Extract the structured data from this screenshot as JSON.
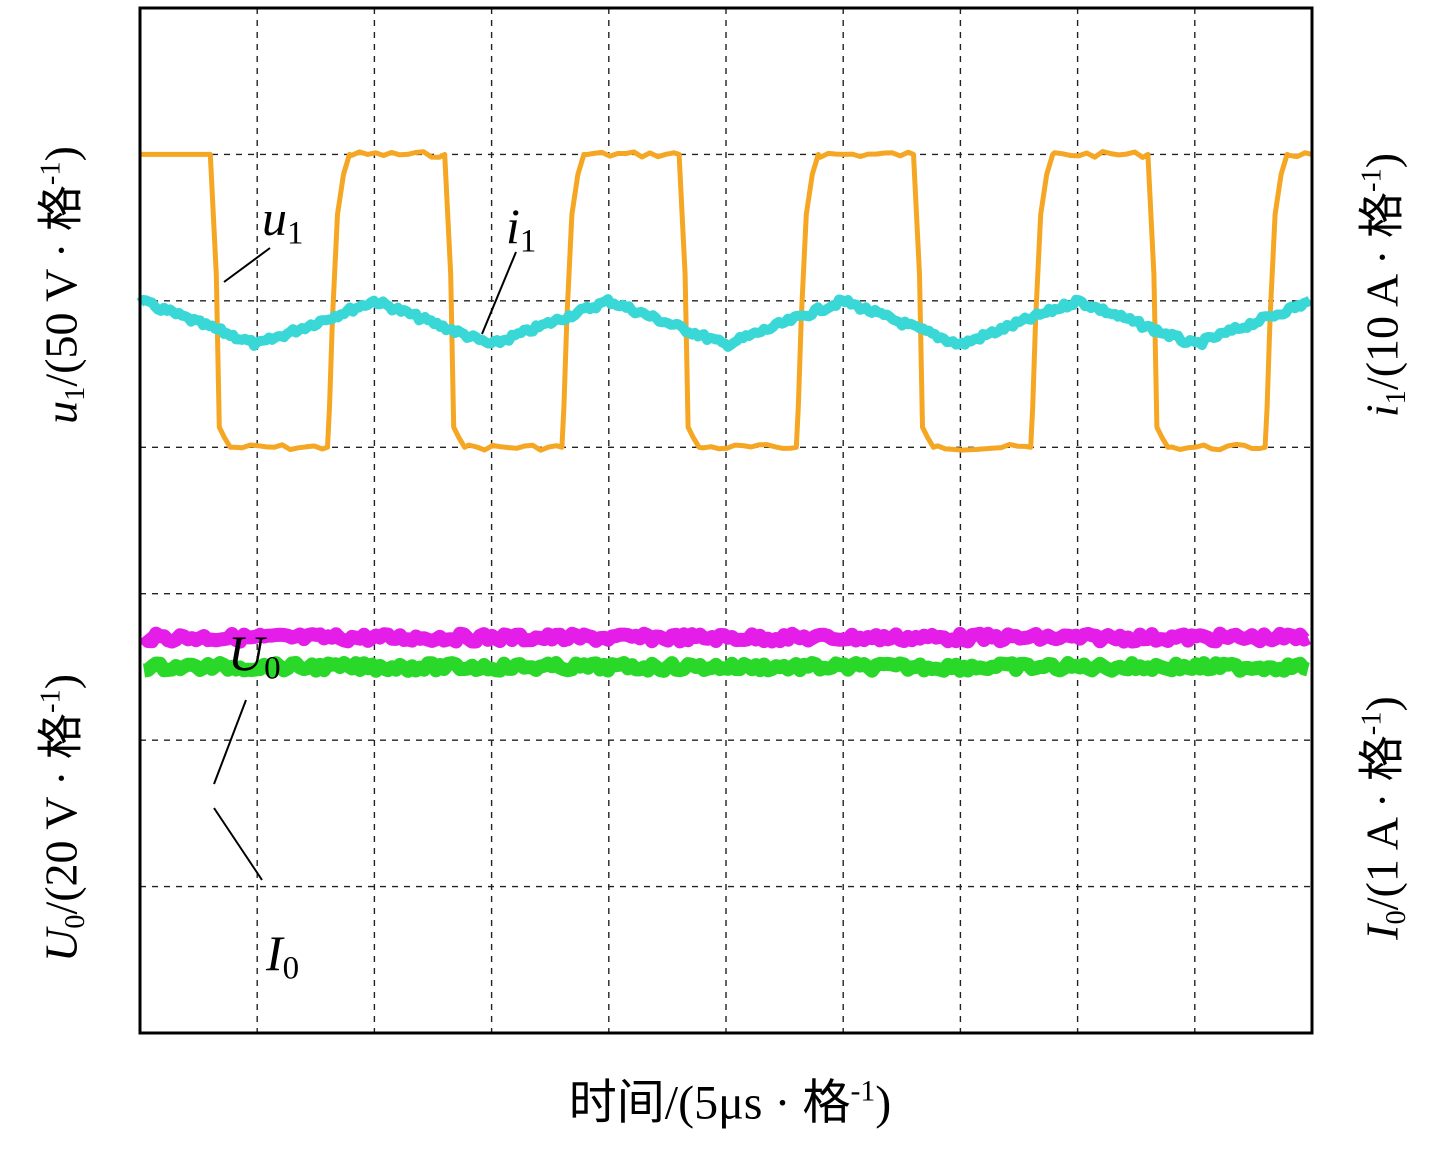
{
  "chart_data": {
    "type": "line",
    "title": "",
    "xlabel": "时间/(5μs · 格-1)",
    "x_axis": {
      "unit_label": "时间/(5μs · 格",
      "exp": "-1",
      "close": ")",
      "divisions": 10
    },
    "y_axes": {
      "left_upper": {
        "var": "u",
        "sub": "1",
        "rest": "/(50 V · 格",
        "exp": "-1",
        "close": ")"
      },
      "left_lower": {
        "var": "U",
        "sub": "0",
        "rest": "/(20 V · 格",
        "exp": "-1",
        "close": ")"
      },
      "right_upper": {
        "var": "i",
        "sub": "1",
        "rest": "/(10 A · 格",
        "exp": "-1",
        "close": ")"
      },
      "right_lower": {
        "var": "I",
        "sub": "0",
        "rest": "/(1 A · 格",
        "exp": "-1",
        "close": ")"
      }
    },
    "grid": true,
    "divisions": {
      "x": 10,
      "y": 7
    },
    "series": [
      {
        "name": "u1",
        "label_var": "u",
        "label_sub": "1",
        "color": "#f5a623",
        "shape": "square",
        "high_div": 1.0,
        "low_div": 3.0,
        "cycles_start_div": 0.6,
        "period_div": 2.0
      },
      {
        "name": "i1",
        "label_var": "i",
        "label_sub": "1",
        "color": "#3ad7d7",
        "shape": "triangle",
        "mid_div": 2.15,
        "amplitude_div": 0.15,
        "period_div": 2.0,
        "first_min_div": 1.0
      },
      {
        "name": "U0",
        "label_var": "U",
        "label_sub": "0",
        "color": "#e41de8",
        "shape": "flat",
        "level_div": 4.3
      },
      {
        "name": "I0",
        "label_var": "I",
        "label_sub": "0",
        "color": "#2ad82a",
        "shape": "flat",
        "level_div": 4.5
      }
    ]
  }
}
